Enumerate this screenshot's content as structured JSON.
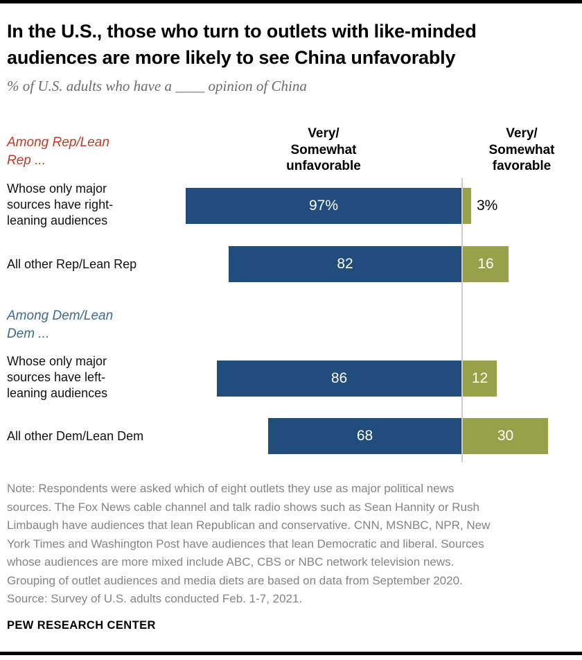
{
  "header": {
    "title": "In the U.S., those who turn to outlets with like-minded\naudiences are more likely to see China unfavorably",
    "subtitle": "% of U.S. adults who have a ____ opinion of China"
  },
  "chart": {
    "section_labels": {
      "rep": "Among Rep/Lean\nRep ...",
      "dem": "Among Dem/Lean\nDem ..."
    },
    "column_headers": {
      "unfavorable": "Very/\nSomewhat\nunfavorable",
      "favorable": "Very/\nSomewhat\nfavorable"
    },
    "rows": [
      {
        "label": "Whose only major\nsources have right-\nleaning audiences",
        "unfavorable_label": "97%",
        "favorable_label": "3%"
      },
      {
        "label": "All other Rep/Lean Rep",
        "unfavorable_label": "82",
        "favorable_label": "16"
      },
      {
        "label": "Whose only major\nsources have left-\nleaning audiences",
        "unfavorable_label": "86",
        "favorable_label": "12"
      },
      {
        "label": "All other Dem/Lean Dem",
        "unfavorable_label": "68",
        "favorable_label": "30"
      }
    ],
    "colors": {
      "unfavorable": "#204d7b",
      "favorable": "#97a14a",
      "rep_label": "#bf3b27",
      "dem_label": "#3d6a8e",
      "divider": "#cccccc"
    }
  },
  "chart_data": {
    "type": "bar",
    "orientation": "horizontal-diverging",
    "title": "% of U.S. adults who have a ____ opinion of China",
    "unit": "%",
    "groups": [
      "Among Rep/Lean Rep ...",
      "Among Dem/Lean Dem ..."
    ],
    "categories": [
      "Whose only major sources have right-leaning audiences",
      "All other Rep/Lean Rep",
      "Whose only major sources have left-leaning audiences",
      "All other Dem/Lean Dem"
    ],
    "series": [
      {
        "key": "unfavorable",
        "name": "Very/Somewhat unfavorable",
        "values": [
          97,
          82,
          86,
          68
        ]
      },
      {
        "key": "favorable",
        "name": "Very/Somewhat favorable",
        "values": [
          3,
          16,
          12,
          30
        ]
      }
    ],
    "value_axis_range": [
      0,
      100
    ],
    "grid": false,
    "legend_position": "column-headers-top"
  },
  "footer": {
    "note": "Note: Respondents were asked which of eight outlets they use as major political news\nsources. The Fox News cable channel and talk radio shows such as Sean Hannity or Rush\nLimbaugh have audiences that lean Republican and conservative. CNN, MSNBC, NPR, New\nYork Times and Washington Post have audiences that lean Democratic and liberal. Sources\nwhose audiences are more mixed include ABC, CBS or NBC network television news.\nGrouping of outlet audiences and media diets are based on data from September 2020.\nSource: Survey of U.S. adults conducted Feb. 1-7, 2021.",
    "brand": "PEW RESEARCH CENTER"
  }
}
